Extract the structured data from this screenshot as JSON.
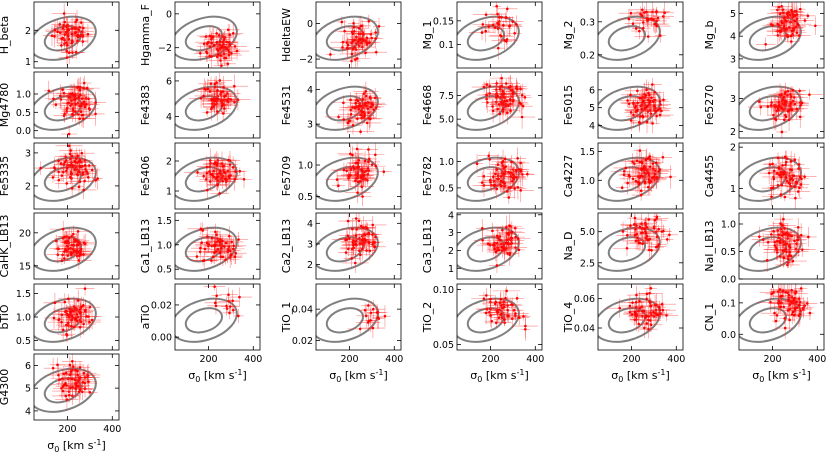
{
  "figure": {
    "xlabel": "σ",
    "xlabel_sub": "0",
    "xlabel_unit": " [km s",
    "xlabel_sup": "-1",
    "xlabel_end": "]",
    "xlim": [
      50,
      430
    ],
    "xticks": [
      200,
      400
    ]
  },
  "style": {
    "point_color": "#ff0000",
    "contour_color": "#808080",
    "axis_color": "#000000"
  },
  "chart_data": [
    {
      "type": "scatter",
      "ylabel": "H_beta",
      "col": 0,
      "row": 0,
      "ylim": [
        0.8,
        2.9
      ],
      "yticks": [
        1,
        2
      ],
      "ytick_labels": [
        "1",
        "2"
      ],
      "center": [
        210,
        1.85
      ],
      "n": 60
    },
    {
      "type": "scatter",
      "ylabel": "Hgamma_F",
      "col": 1,
      "row": 0,
      "ylim": [
        -3.2,
        0.7
      ],
      "yticks": [
        -2,
        0
      ],
      "ytick_labels": [
        "−2",
        "0"
      ],
      "center": [
        250,
        -1.9
      ],
      "n": 60
    },
    {
      "type": "scatter",
      "ylabel": "HdeltaEW",
      "col": 2,
      "row": 0,
      "ylim": [
        -2.5,
        1.2
      ],
      "yticks": [
        -2,
        0
      ],
      "ytick_labels": [
        "−2",
        "0"
      ],
      "center": [
        250,
        -1.0
      ],
      "n": 60
    },
    {
      "type": "scatter",
      "ylabel": "Mg_1",
      "col": 3,
      "row": 0,
      "ylim": [
        0.05,
        0.19
      ],
      "yticks": [
        0.1,
        0.15
      ],
      "ytick_labels": [
        "0.1",
        "0.15"
      ],
      "center": [
        250,
        0.14
      ],
      "n": 30
    },
    {
      "type": "scatter",
      "ylabel": "Mg_2",
      "col": 4,
      "row": 0,
      "ylim": [
        0.16,
        0.36
      ],
      "yticks": [
        0.2,
        0.3
      ],
      "ytick_labels": [
        "0.2",
        "0.3"
      ],
      "center": [
        270,
        0.31
      ],
      "n": 30
    },
    {
      "type": "scatter",
      "ylabel": "Mg_b",
      "col": 5,
      "row": 0,
      "ylim": [
        2.6,
        5.5
      ],
      "yticks": [
        3,
        4,
        5
      ],
      "ytick_labels": [
        "3",
        "4",
        "5"
      ],
      "center": [
        260,
        4.6
      ],
      "n": 70
    },
    {
      "type": "scatter",
      "ylabel": "Mg4780",
      "col": 0,
      "row": 1,
      "ylim": [
        -0.2,
        1.6
      ],
      "yticks": [
        0,
        0.5,
        1
      ],
      "ytick_labels": [
        "0.0",
        "0.5",
        "1.0"
      ],
      "center": [
        230,
        0.85
      ],
      "n": 70
    },
    {
      "type": "scatter",
      "ylabel": "Fe4383",
      "col": 1,
      "row": 1,
      "ylim": [
        2.8,
        6.5
      ],
      "yticks": [
        4,
        6
      ],
      "ytick_labels": [
        "4",
        "6"
      ],
      "center": [
        250,
        5.0
      ],
      "n": 60
    },
    {
      "type": "scatter",
      "ylabel": "Fe4531",
      "col": 2,
      "row": 1,
      "ylim": [
        2.6,
        4.5
      ],
      "yticks": [
        3,
        4
      ],
      "ytick_labels": [
        "3",
        "4"
      ],
      "center": [
        250,
        3.5
      ],
      "n": 60
    },
    {
      "type": "scatter",
      "ylabel": "Fe4668",
      "col": 3,
      "row": 1,
      "ylim": [
        3,
        10
      ],
      "yticks": [
        5,
        7.5
      ],
      "ytick_labels": [
        "5.0",
        "7.5"
      ],
      "center": [
        260,
        7.2
      ],
      "n": 70
    },
    {
      "type": "scatter",
      "ylabel": "Fe5015",
      "col": 4,
      "row": 1,
      "ylim": [
        3.3,
        7
      ],
      "yticks": [
        4,
        5,
        6
      ],
      "ytick_labels": [
        "4",
        "5",
        "6"
      ],
      "center": [
        260,
        5.2
      ],
      "n": 70
    },
    {
      "type": "scatter",
      "ylabel": "Fe5270",
      "col": 5,
      "row": 1,
      "ylim": [
        1.8,
        3.8
      ],
      "yticks": [
        2,
        3
      ],
      "ytick_labels": [
        "2",
        "3"
      ],
      "center": [
        260,
        2.8
      ],
      "n": 70
    },
    {
      "type": "scatter",
      "ylabel": "Fe5335",
      "col": 0,
      "row": 2,
      "ylim": [
        1.3,
        3.3
      ],
      "yticks": [
        2,
        3
      ],
      "ytick_labels": [
        "2",
        "3"
      ],
      "center": [
        230,
        2.5
      ],
      "n": 70
    },
    {
      "type": "scatter",
      "ylabel": "Fe5406",
      "col": 1,
      "row": 2,
      "ylim": [
        0.4,
        2.6
      ],
      "yticks": [
        1,
        2
      ],
      "ytick_labels": [
        "1",
        "2"
      ],
      "center": [
        250,
        1.6
      ],
      "n": 60
    },
    {
      "type": "scatter",
      "ylabel": "Fe5709",
      "col": 2,
      "row": 2,
      "ylim": [
        0.3,
        1.35
      ],
      "yticks": [
        0.5,
        1
      ],
      "ytick_labels": [
        "0.5",
        "1.0"
      ],
      "center": [
        250,
        0.85
      ],
      "n": 60
    },
    {
      "type": "scatter",
      "ylabel": "Fe5782",
      "col": 3,
      "row": 2,
      "ylim": [
        0.1,
        1.35
      ],
      "yticks": [
        0.5,
        1
      ],
      "ytick_labels": [
        "0.5",
        "1.0"
      ],
      "center": [
        260,
        0.75
      ],
      "n": 70
    },
    {
      "type": "scatter",
      "ylabel": "Ca4227",
      "col": 4,
      "row": 2,
      "ylim": [
        0.5,
        1.65
      ],
      "yticks": [
        1,
        1.5
      ],
      "ytick_labels": [
        "1.0",
        "1.5"
      ],
      "center": [
        260,
        1.1
      ],
      "n": 70
    },
    {
      "type": "scatter",
      "ylabel": "Ca4455",
      "col": 5,
      "row": 2,
      "ylim": [
        0.5,
        2.1
      ],
      "yticks": [
        1,
        2
      ],
      "ytick_labels": [
        "1",
        "2"
      ],
      "center": [
        260,
        1.3
      ],
      "n": 60
    },
    {
      "type": "scatter",
      "ylabel": "CaHK_LB13",
      "col": 0,
      "row": 3,
      "ylim": [
        13,
        23
      ],
      "yticks": [
        15,
        20
      ],
      "ytick_labels": [
        "15",
        "20"
      ],
      "center": [
        220,
        18
      ],
      "n": 60
    },
    {
      "type": "scatter",
      "ylabel": "Ca1_LB13",
      "col": 1,
      "row": 3,
      "ylim": [
        0.3,
        1.65
      ],
      "yticks": [
        0.5,
        1,
        1.5
      ],
      "ytick_labels": [
        "0.5",
        "1.0",
        "1.5"
      ],
      "center": [
        250,
        0.95
      ],
      "n": 60
    },
    {
      "type": "scatter",
      "ylabel": "Ca2_LB13",
      "col": 2,
      "row": 3,
      "ylim": [
        1.3,
        4.5
      ],
      "yticks": [
        2,
        3,
        4
      ],
      "ytick_labels": [
        "2",
        "3",
        "4"
      ],
      "center": [
        250,
        3.2
      ],
      "n": 60
    },
    {
      "type": "scatter",
      "ylabel": "Ca3_LB13",
      "col": 3,
      "row": 3,
      "ylim": [
        0.4,
        4.1
      ],
      "yticks": [
        1,
        2,
        3,
        4
      ],
      "ytick_labels": [
        "1",
        "2",
        "3",
        "4"
      ],
      "center": [
        260,
        2.5
      ],
      "n": 60
    },
    {
      "type": "scatter",
      "ylabel": "Na_D",
      "col": 4,
      "row": 3,
      "ylim": [
        1.2,
        6.5
      ],
      "yticks": [
        2.5,
        5
      ],
      "ytick_labels": [
        "2.5",
        "5.0"
      ],
      "center": [
        260,
        4.8
      ],
      "n": 50
    },
    {
      "type": "scatter",
      "ylabel": "NaI_LB13",
      "col": 5,
      "row": 3,
      "ylim": [
        0,
        1.2
      ],
      "yticks": [
        0,
        0.5,
        1
      ],
      "ytick_labels": [
        "0.0",
        "0.5",
        "1.0"
      ],
      "center": [
        260,
        0.65
      ],
      "n": 70
    },
    {
      "type": "scatter",
      "ylabel": "bTiO",
      "col": 0,
      "row": 4,
      "ylim": [
        0.3,
        1.7
      ],
      "yticks": [
        0.5,
        1,
        1.5
      ],
      "ytick_labels": [
        "0.5",
        "1.0",
        "1.5"
      ],
      "center": [
        230,
        1.0
      ],
      "n": 60
    },
    {
      "type": "scatter",
      "ylabel": "aTiO",
      "col": 1,
      "row": 4,
      "ylim": [
        -0.008,
        0.033
      ],
      "yticks": [
        0,
        0.02
      ],
      "ytick_labels": [
        "0.00",
        "0.02"
      ],
      "center": [
        270,
        0.022
      ],
      "n": 15
    },
    {
      "type": "scatter",
      "ylabel": "TiO_1",
      "col": 2,
      "row": 4,
      "ylim": [
        0.014,
        0.056
      ],
      "yticks": [
        0.02,
        0.04
      ],
      "ytick_labels": [
        "0.02",
        "0.04"
      ],
      "center": [
        280,
        0.037
      ],
      "n": 15
    },
    {
      "type": "scatter",
      "ylabel": "TiO_2",
      "col": 3,
      "row": 4,
      "ylim": [
        0.045,
        0.105
      ],
      "yticks": [
        0.05,
        0.1
      ],
      "ytick_labels": [
        "0.05",
        "0.10"
      ],
      "center": [
        260,
        0.08
      ],
      "n": 50
    },
    {
      "type": "scatter",
      "ylabel": "TiO_4",
      "col": 4,
      "row": 4,
      "ylim": [
        0.025,
        0.07
      ],
      "yticks": [
        0.04,
        0.06
      ],
      "ytick_labels": [
        "0.04",
        "0.06"
      ],
      "center": [
        270,
        0.052
      ],
      "n": 60
    },
    {
      "type": "scatter",
      "ylabel": "CN_1",
      "col": 5,
      "row": 4,
      "ylim": [
        -0.05,
        0.16
      ],
      "yticks": [
        0,
        0.1
      ],
      "ytick_labels": [
        "0.0",
        "0.1"
      ],
      "center": [
        270,
        0.1
      ],
      "n": 70
    },
    {
      "type": "scatter",
      "ylabel": "G4300",
      "col": 0,
      "row": 5,
      "ylim": [
        3.6,
        6.5
      ],
      "yticks": [
        4,
        5,
        6
      ],
      "ytick_labels": [
        "4",
        "5",
        "6"
      ],
      "center": [
        230,
        5.4
      ],
      "n": 60
    }
  ]
}
